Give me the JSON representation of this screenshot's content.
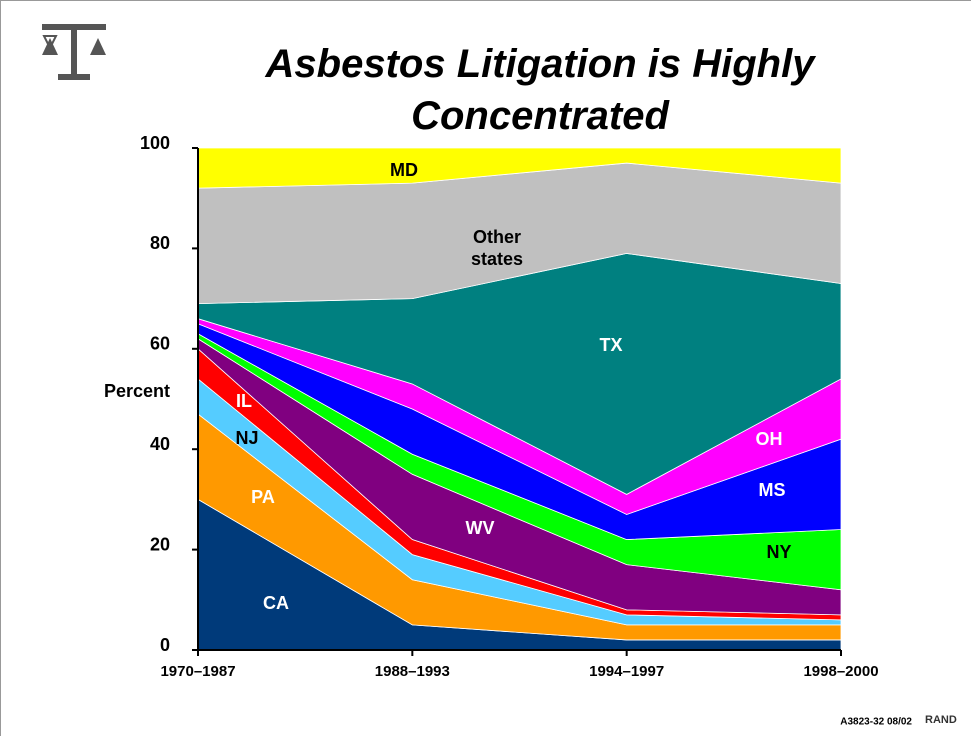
{
  "chart_data": {
    "type": "stacked_area",
    "title": "Asbestos Litigation is Highly Concentrated",
    "ylabel": "Percent",
    "footnote": "A3823-32 08/02",
    "brand": "RAND",
    "categories": [
      "1970–1987",
      "1988–1993",
      "1994–1997",
      "1998–2000"
    ],
    "ylim": [
      0,
      100
    ],
    "yticks": [
      0,
      20,
      40,
      60,
      80,
      100
    ],
    "series": [
      {
        "name": "CA",
        "color": "#003a7a",
        "values": [
          30,
          5,
          2,
          2
        ]
      },
      {
        "name": "PA",
        "color": "#ff9900",
        "values": [
          17,
          9,
          3,
          3
        ]
      },
      {
        "name": "NJ",
        "color": "#55ccff",
        "values": [
          7,
          5,
          2,
          1
        ]
      },
      {
        "name": "IL",
        "color": "#ff0000",
        "values": [
          6,
          3,
          1,
          1
        ]
      },
      {
        "name": "WV",
        "color": "#800080",
        "values": [
          2,
          13,
          9,
          5
        ]
      },
      {
        "name": "NY",
        "color": "#00ff00",
        "values": [
          1,
          4,
          5,
          12
        ]
      },
      {
        "name": "MS",
        "color": "#0000ff",
        "values": [
          2,
          9,
          5,
          18
        ]
      },
      {
        "name": "OH",
        "color": "#ff00ff",
        "values": [
          1,
          5,
          4,
          12
        ]
      },
      {
        "name": "TX",
        "color": "#008080",
        "values": [
          3,
          17,
          48,
          19
        ]
      },
      {
        "name": "Other states",
        "color": "#c0c0c0",
        "values": [
          23,
          23,
          18,
          20
        ]
      },
      {
        "name": "MD",
        "color": "#ffff00",
        "values": [
          8,
          7,
          3,
          7
        ]
      }
    ]
  }
}
